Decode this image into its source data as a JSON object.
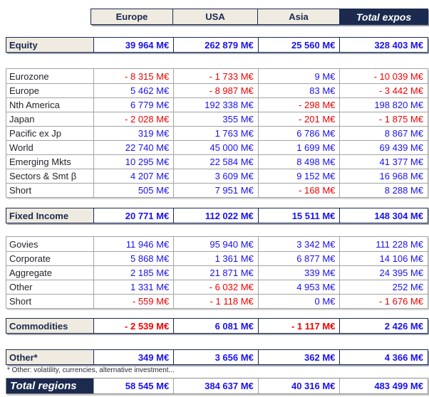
{
  "colors": {
    "navy": "#1b2a4e",
    "beige": "#efebe1",
    "positive_blue": "#1a12ee",
    "negative_red": "#f20000"
  },
  "header": {
    "columns": [
      "Europe",
      "USA",
      "Asia"
    ],
    "total_column": "Total expos"
  },
  "equity": {
    "label": "Equity",
    "values": [
      "39 964 M€",
      "262 879 M€",
      "25 560 M€",
      "328 403 M€"
    ]
  },
  "equity_rows": [
    {
      "label": "Eurozone",
      "values": [
        "- 8 315 M€",
        "- 1 733 M€",
        "9 M€",
        "- 10 039 M€"
      ]
    },
    {
      "label": "Europe",
      "values": [
        "5 462 M€",
        "- 8 987 M€",
        "83 M€",
        "- 3 442 M€"
      ]
    },
    {
      "label": "Nth America",
      "values": [
        "6 779 M€",
        "192 338 M€",
        "- 298 M€",
        "198 820 M€"
      ]
    },
    {
      "label": "Japan",
      "values": [
        "- 2 028 M€",
        "355 M€",
        "- 201 M€",
        "- 1 875 M€"
      ]
    },
    {
      "label": "Pacific ex Jp",
      "values": [
        "319 M€",
        "1 763 M€",
        "6 786 M€",
        "8 867 M€"
      ]
    },
    {
      "label": "World",
      "values": [
        "22 740 M€",
        "45 000 M€",
        "1 699 M€",
        "69 439 M€"
      ]
    },
    {
      "label": "Emerging Mkts",
      "values": [
        "10 295 M€",
        "22 584 M€",
        "8 498 M€",
        "41 377 M€"
      ]
    },
    {
      "label": "Sectors & Smt β",
      "values": [
        "4 207 M€",
        "3 609 M€",
        "9 152 M€",
        "16 968 M€"
      ]
    },
    {
      "label": "Short",
      "values": [
        "505 M€",
        "7 951 M€",
        "- 168 M€",
        "8 288 M€"
      ]
    }
  ],
  "fixed_income": {
    "label": "Fixed Income",
    "values": [
      "20 771 M€",
      "112 022 M€",
      "15 511 M€",
      "148 304 M€"
    ]
  },
  "fixed_income_rows": [
    {
      "label": "Govies",
      "values": [
        "11 946 M€",
        "95 940 M€",
        "3 342 M€",
        "111 228 M€"
      ]
    },
    {
      "label": "Corporate",
      "values": [
        "5 868 M€",
        "1 361 M€",
        "6 877 M€",
        "14 106 M€"
      ]
    },
    {
      "label": "Aggregate",
      "values": [
        "2 185 M€",
        "21 871 M€",
        "339 M€",
        "24 395 M€"
      ]
    },
    {
      "label": "Other",
      "values": [
        "1 331 M€",
        "- 6 032 M€",
        "4 953 M€",
        "252 M€"
      ]
    },
    {
      "label": "Short",
      "values": [
        "- 559 M€",
        "- 1 118 M€",
        "0 M€",
        "- 1 676 M€"
      ]
    }
  ],
  "commodities": {
    "label": "Commodities",
    "values": [
      "- 2 539 M€",
      "6 081 M€",
      "- 1 117 M€",
      "2 426 M€"
    ]
  },
  "other": {
    "label": "Other*",
    "values": [
      "349 M€",
      "3 656 M€",
      "362 M€",
      "4 366 M€"
    ]
  },
  "footnote": "* Other: volatility, currencies, alternative investment...",
  "total_regions": {
    "label": "Total regions",
    "values": [
      "58 545 M€",
      "384 637 M€",
      "40 316 M€",
      "483 499 M€"
    ]
  }
}
